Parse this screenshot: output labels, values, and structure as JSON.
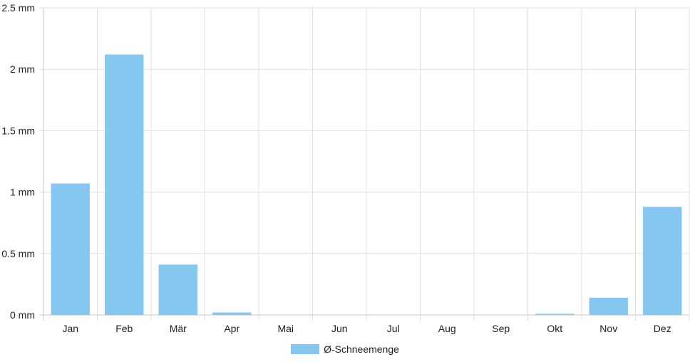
{
  "chart_data": {
    "type": "bar",
    "categories": [
      "Jan",
      "Feb",
      "Mär",
      "Apr",
      "Mai",
      "Jun",
      "Jul",
      "Aug",
      "Sep",
      "Okt",
      "Nov",
      "Dez"
    ],
    "series": [
      {
        "name": "Ø-Schneemenge",
        "values": [
          1.07,
          2.12,
          0.41,
          0.02,
          0,
          0,
          0,
          0,
          0,
          0.01,
          0.14,
          0.88
        ]
      }
    ],
    "y_ticks": [
      "0 mm",
      "0.5 mm",
      "1 mm",
      "1.5 mm",
      "2 mm",
      "2.5 mm"
    ],
    "ylim": [
      0,
      2.5
    ],
    "grid": true,
    "legend_position": "bottom",
    "colors": {
      "bar": "#86c7f2",
      "grid": "#e0e0e0",
      "axis": "#c8c8c8"
    }
  }
}
